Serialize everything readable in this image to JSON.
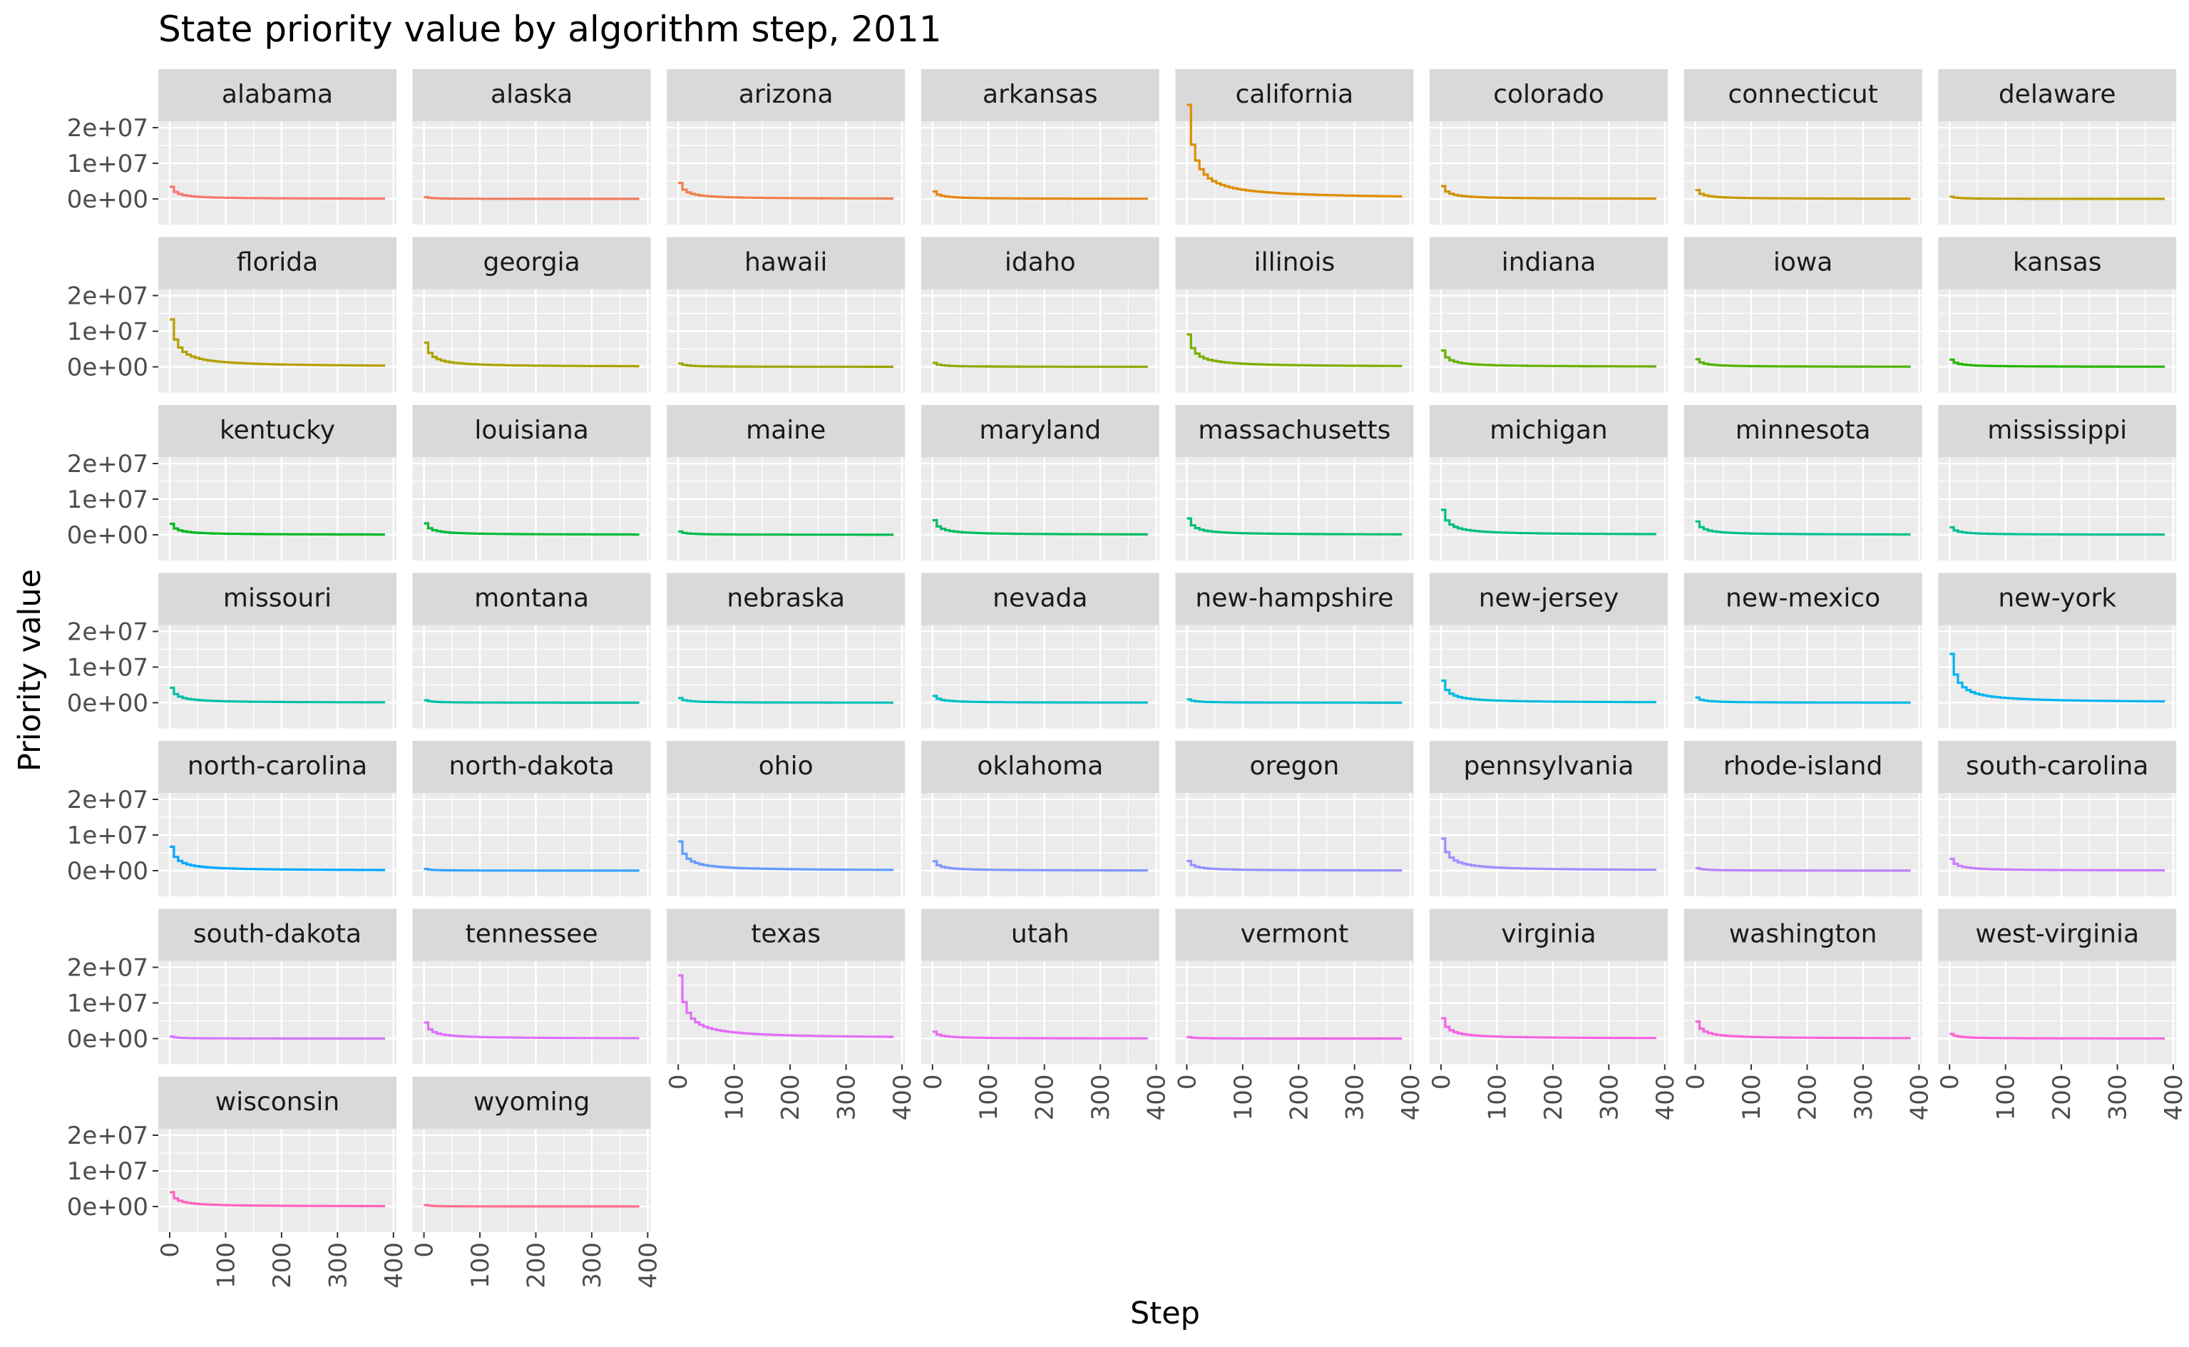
{
  "chart_data": {
    "type": "line",
    "title": "State priority value by algorithm step, 2011",
    "xlabel": "Step",
    "ylabel": "Priority value",
    "xlim": [
      0,
      400
    ],
    "ylim": [
      0,
      26000000
    ],
    "x_ticks": [
      0,
      100,
      200,
      300,
      400
    ],
    "y_ticks": [
      0,
      10000000,
      20000000
    ],
    "x_tick_labels": [
      "0",
      "100",
      "200",
      "300",
      "400"
    ],
    "y_tick_labels": [
      "0e+00",
      "1e+07",
      "2e+07"
    ],
    "legend": "none",
    "grid": true,
    "step_range": [
      0,
      385
    ],
    "layout": {
      "columns": 8,
      "rows": 7
    },
    "series": [
      {
        "name": "alabama",
        "color": "#F8766D",
        "initial_priority": 3400000
      },
      {
        "name": "alaska",
        "color": "#F47A5E",
        "initial_priority": 500000
      },
      {
        "name": "arizona",
        "color": "#EE7F4B",
        "initial_priority": 4500000
      },
      {
        "name": "arkansas",
        "color": "#E68613",
        "initial_priority": 2100000
      },
      {
        "name": "california",
        "color": "#DD8D00",
        "initial_priority": 26400000
      },
      {
        "name": "colorado",
        "color": "#D39200",
        "initial_priority": 3600000
      },
      {
        "name": "connecticut",
        "color": "#C99800",
        "initial_priority": 2500000
      },
      {
        "name": "delaware",
        "color": "#BF9C00",
        "initial_priority": 640000
      },
      {
        "name": "florida",
        "color": "#B4A000",
        "initial_priority": 13300000
      },
      {
        "name": "georgia",
        "color": "#A8A400",
        "initial_priority": 6800000
      },
      {
        "name": "hawaii",
        "color": "#9CA700",
        "initial_priority": 960000
      },
      {
        "name": "idaho",
        "color": "#8EAB00",
        "initial_priority": 1110000
      },
      {
        "name": "illinois",
        "color": "#7CAE00",
        "initial_priority": 9100000
      },
      {
        "name": "indiana",
        "color": "#68B100",
        "initial_priority": 4600000
      },
      {
        "name": "iowa",
        "color": "#4EB400",
        "initial_priority": 2150000
      },
      {
        "name": "kansas",
        "color": "#25B600",
        "initial_priority": 2020000
      },
      {
        "name": "kentucky",
        "color": "#00B81F",
        "initial_priority": 3100000
      },
      {
        "name": "louisiana",
        "color": "#00BA38",
        "initial_priority": 3200000
      },
      {
        "name": "maine",
        "color": "#00BB4E",
        "initial_priority": 940000
      },
      {
        "name": "maryland",
        "color": "#00BC61",
        "initial_priority": 4100000
      },
      {
        "name": "massachusetts",
        "color": "#00BE72",
        "initial_priority": 4600000
      },
      {
        "name": "michigan",
        "color": "#00BF7D",
        "initial_priority": 7000000
      },
      {
        "name": "minnesota",
        "color": "#00C08B",
        "initial_priority": 3750000
      },
      {
        "name": "mississippi",
        "color": "#00C097",
        "initial_priority": 2100000
      },
      {
        "name": "missouri",
        "color": "#00C1A3",
        "initial_priority": 4200000
      },
      {
        "name": "montana",
        "color": "#00C1AA",
        "initial_priority": 700000
      },
      {
        "name": "nebraska",
        "color": "#00C0B6",
        "initial_priority": 1290000
      },
      {
        "name": "nevada",
        "color": "#00BFC4",
        "initial_priority": 1900000
      },
      {
        "name": "new-hampshire",
        "color": "#00BDD0",
        "initial_priority": 940000
      },
      {
        "name": "new-jersey",
        "color": "#00BBDB",
        "initial_priority": 6200000
      },
      {
        "name": "new-mexico",
        "color": "#00B8E5",
        "initial_priority": 1460000
      },
      {
        "name": "new-york",
        "color": "#00B4EF",
        "initial_priority": 13700000
      },
      {
        "name": "north-carolina",
        "color": "#00A9FF",
        "initial_priority": 6700000
      },
      {
        "name": "north-dakota",
        "color": "#35A2FF",
        "initial_priority": 480000
      },
      {
        "name": "ohio",
        "color": "#619CFF",
        "initial_priority": 8200000
      },
      {
        "name": "oklahoma",
        "color": "#7F96FF",
        "initial_priority": 2650000
      },
      {
        "name": "oregon",
        "color": "#9590FF",
        "initial_priority": 2700000
      },
      {
        "name": "pennsylvania",
        "color": "#A58AFF",
        "initial_priority": 9000000
      },
      {
        "name": "rhode-island",
        "color": "#B983FF",
        "initial_priority": 740000
      },
      {
        "name": "south-carolina",
        "color": "#C77CFF",
        "initial_priority": 3300000
      },
      {
        "name": "south-dakota",
        "color": "#D376FF",
        "initial_priority": 580000
      },
      {
        "name": "tennessee",
        "color": "#DC71FA",
        "initial_priority": 4500000
      },
      {
        "name": "texas",
        "color": "#E36EF6",
        "initial_priority": 17700000
      },
      {
        "name": "utah",
        "color": "#EA6BEF",
        "initial_priority": 1950000
      },
      {
        "name": "vermont",
        "color": "#F066EA",
        "initial_priority": 440000
      },
      {
        "name": "virginia",
        "color": "#F564E3",
        "initial_priority": 5700000
      },
      {
        "name": "washington",
        "color": "#F863DB",
        "initial_priority": 4800000
      },
      {
        "name": "west-virginia",
        "color": "#FB61D7",
        "initial_priority": 1300000
      },
      {
        "name": "wisconsin",
        "color": "#FF62BC",
        "initial_priority": 4000000
      },
      {
        "name": "wyoming",
        "color": "#FF6C91",
        "initial_priority": 400000
      }
    ]
  }
}
